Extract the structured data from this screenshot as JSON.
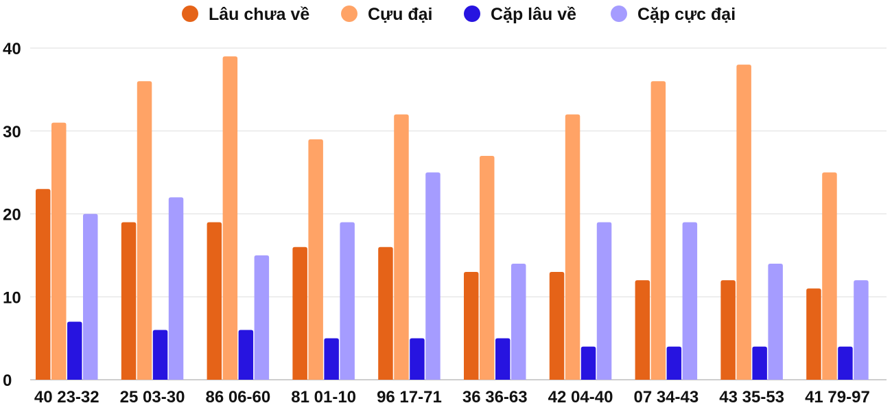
{
  "chart_data": {
    "type": "bar",
    "categories": [
      "40 23-32",
      "25 03-30",
      "86 06-60",
      "81 01-10",
      "96 17-71",
      "36 36-63",
      "42 04-40",
      "07 34-43",
      "43 35-53",
      "41 79-97"
    ],
    "series": [
      {
        "name": "Lâu chưa về",
        "color": "#e56318",
        "values": [
          23,
          19,
          19,
          16,
          16,
          13,
          13,
          12,
          12,
          11
        ]
      },
      {
        "name": "Cựu đại",
        "color": "#ffa366",
        "values": [
          31,
          36,
          39,
          29,
          32,
          27,
          32,
          36,
          38,
          25
        ]
      },
      {
        "name": "Cặp lâu về",
        "color": "#2714e0",
        "values": [
          7,
          6,
          6,
          5,
          5,
          5,
          4,
          4,
          4,
          4
        ]
      },
      {
        "name": "Cặp cực đại",
        "color": "#a59cff",
        "values": [
          20,
          22,
          15,
          19,
          25,
          14,
          19,
          19,
          14,
          12
        ]
      }
    ],
    "yticks": [
      0,
      10,
      20,
      30,
      40
    ],
    "ylim": [
      0,
      40
    ],
    "grid": true,
    "legend_position": "top"
  }
}
